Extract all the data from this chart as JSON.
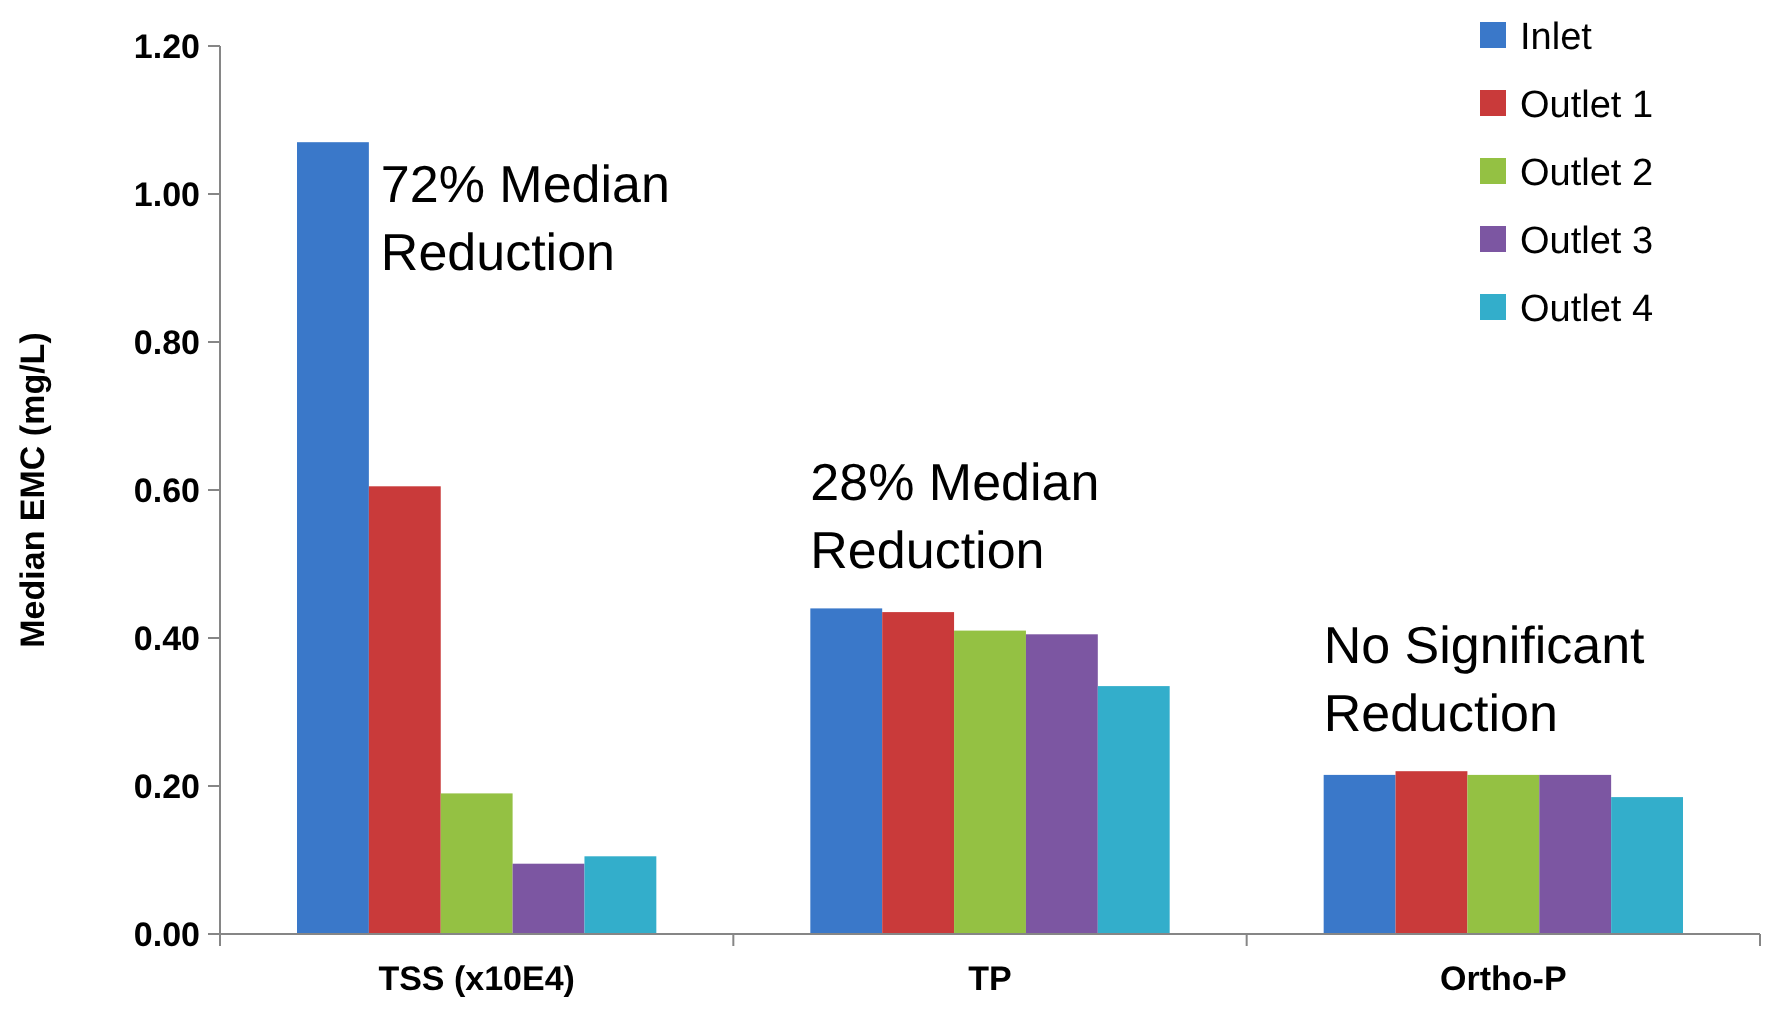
{
  "chart_data": {
    "type": "bar",
    "ylabel": "Median EMC (mg/L)",
    "categories": [
      "TSS (x10E4)",
      "TP",
      "Ortho-P"
    ],
    "series": [
      {
        "name": "Inlet",
        "color": "#3a78c9",
        "values": [
          1.07,
          0.44,
          0.215
        ]
      },
      {
        "name": "Outlet 1",
        "color": "#c93a3a",
        "values": [
          0.605,
          0.435,
          0.22
        ]
      },
      {
        "name": "Outlet 2",
        "color": "#94c143",
        "values": [
          0.19,
          0.41,
          0.215
        ]
      },
      {
        "name": "Outlet 3",
        "color": "#7c56a2",
        "values": [
          0.095,
          0.405,
          0.215
        ]
      },
      {
        "name": "Outlet 4",
        "color": "#33aecb",
        "values": [
          0.105,
          0.335,
          0.185
        ]
      }
    ],
    "ylim": [
      0,
      1.2
    ],
    "yticks": [
      {
        "value": 0,
        "label": "0.00"
      },
      {
        "value": 0.2,
        "label": "0.20"
      },
      {
        "value": 0.4,
        "label": "0.40"
      },
      {
        "value": 0.6,
        "label": "0.60"
      },
      {
        "value": 0.8,
        "label": "0.80"
      },
      {
        "value": 1,
        "label": "1.00"
      },
      {
        "value": 1.2,
        "label": "1.20"
      }
    ],
    "annotations": [
      "72% Median Reduction",
      "28% Median Reduction",
      "No Significant Reduction"
    ],
    "grid": false,
    "legend": "top right"
  }
}
